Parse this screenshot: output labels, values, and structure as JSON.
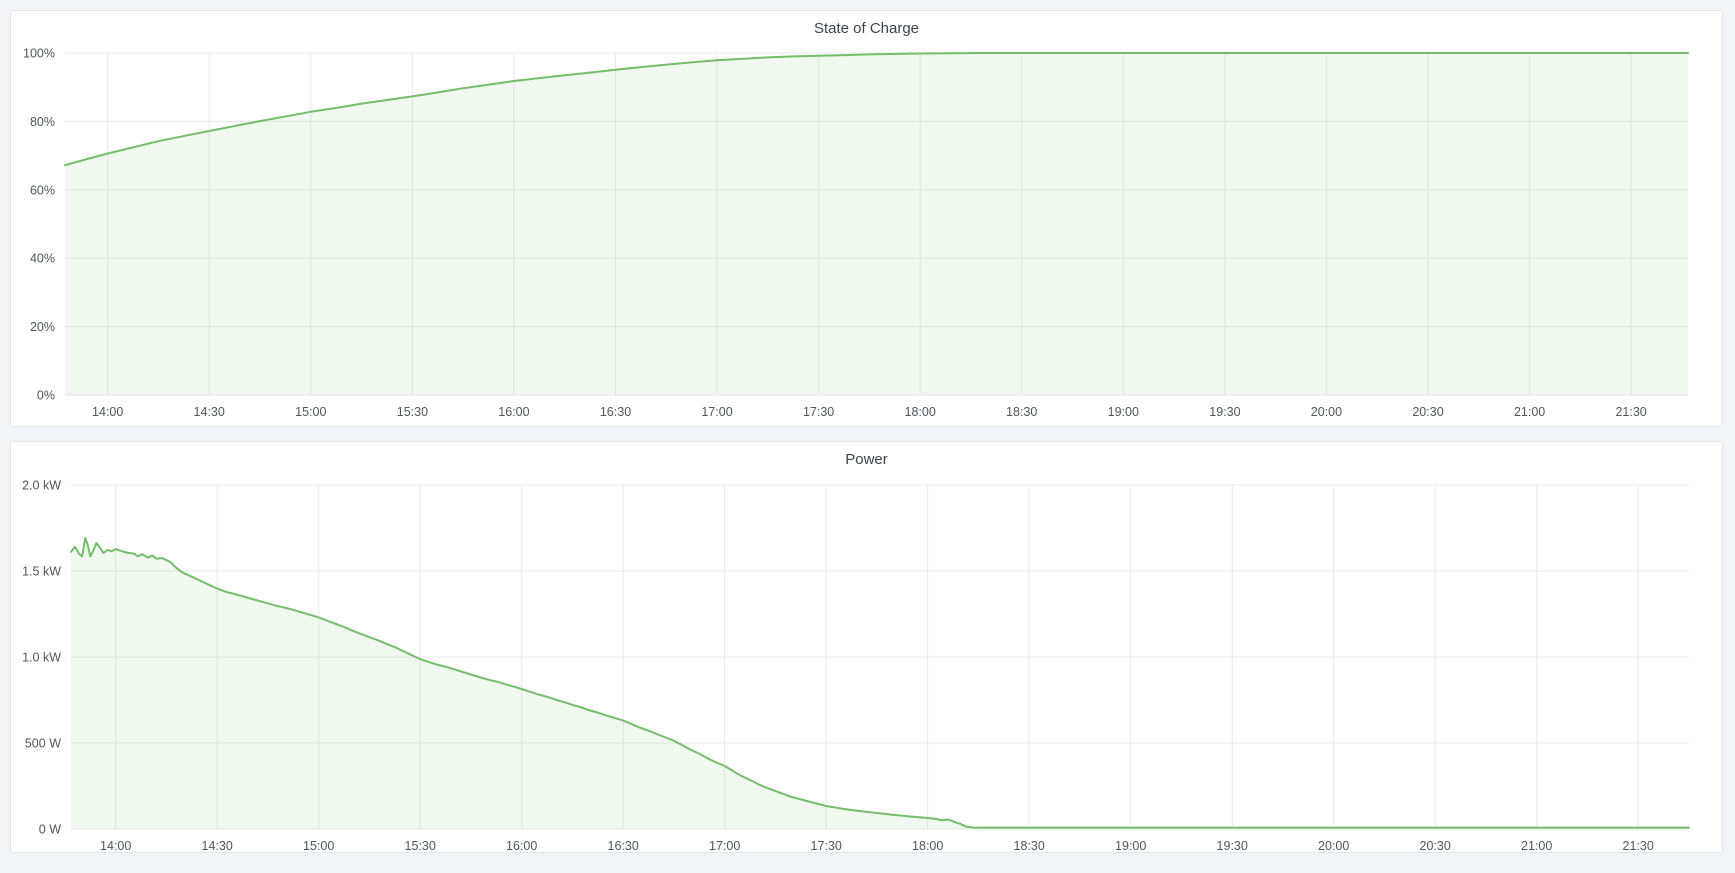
{
  "page": {
    "background_color": "#f2f4f8",
    "panel_background": "#ffffff",
    "accent_green": "#73bf69"
  },
  "chart_data": [
    {
      "type": "area",
      "title": "State of Charge",
      "xlabel": "",
      "ylabel": "",
      "y_range": [
        0,
        100
      ],
      "x_range_hours": [
        13.79,
        21.78
      ],
      "grid": true,
      "legend": "none",
      "x_ticks": [
        {
          "v": 14.0,
          "label": "14:00"
        },
        {
          "v": 14.5,
          "label": "14:30"
        },
        {
          "v": 15.0,
          "label": "15:00"
        },
        {
          "v": 15.5,
          "label": "15:30"
        },
        {
          "v": 16.0,
          "label": "16:00"
        },
        {
          "v": 16.5,
          "label": "16:30"
        },
        {
          "v": 17.0,
          "label": "17:00"
        },
        {
          "v": 17.5,
          "label": "17:30"
        },
        {
          "v": 18.0,
          "label": "18:00"
        },
        {
          "v": 18.5,
          "label": "18:30"
        },
        {
          "v": 19.0,
          "label": "19:00"
        },
        {
          "v": 19.5,
          "label": "19:30"
        },
        {
          "v": 20.0,
          "label": "20:00"
        },
        {
          "v": 20.5,
          "label": "20:30"
        },
        {
          "v": 21.0,
          "label": "21:00"
        },
        {
          "v": 21.5,
          "label": "21:30"
        }
      ],
      "y_ticks": [
        {
          "v": 0,
          "label": "0%"
        },
        {
          "v": 20,
          "label": "20%"
        },
        {
          "v": 40,
          "label": "40%"
        },
        {
          "v": 60,
          "label": "60%"
        },
        {
          "v": 80,
          "label": "80%"
        },
        {
          "v": 100,
          "label": "100%"
        }
      ],
      "series": [
        {
          "name": "State of Charge",
          "unit": "percent",
          "color": "#73bf69",
          "fill": "rgba(115,191,105,0.11)",
          "points": [
            [
              13.79,
              67.2
            ],
            [
              13.9,
              69.0
            ],
            [
              14.0,
              70.6
            ],
            [
              14.13,
              72.5
            ],
            [
              14.25,
              74.2
            ],
            [
              14.38,
              75.8
            ],
            [
              14.5,
              77.2
            ],
            [
              14.63,
              78.7
            ],
            [
              14.75,
              80.1
            ],
            [
              14.88,
              81.5
            ],
            [
              15.0,
              82.8
            ],
            [
              15.13,
              84.0
            ],
            [
              15.25,
              85.2
            ],
            [
              15.38,
              86.3
            ],
            [
              15.5,
              87.3
            ],
            [
              15.63,
              88.5
            ],
            [
              15.75,
              89.7
            ],
            [
              15.88,
              90.8
            ],
            [
              16.0,
              91.8
            ],
            [
              16.13,
              92.7
            ],
            [
              16.25,
              93.5
            ],
            [
              16.38,
              94.3
            ],
            [
              16.5,
              95.1
            ],
            [
              16.63,
              95.9
            ],
            [
              16.75,
              96.6
            ],
            [
              16.88,
              97.3
            ],
            [
              17.0,
              97.9
            ],
            [
              17.13,
              98.3
            ],
            [
              17.25,
              98.7
            ],
            [
              17.38,
              99.0
            ],
            [
              17.5,
              99.2
            ],
            [
              17.63,
              99.4
            ],
            [
              17.75,
              99.6
            ],
            [
              17.88,
              99.75
            ],
            [
              18.0,
              99.85
            ],
            [
              18.15,
              99.95
            ],
            [
              18.3,
              100
            ],
            [
              18.6,
              100
            ],
            [
              19.0,
              100
            ],
            [
              19.5,
              100
            ],
            [
              20.0,
              100
            ],
            [
              20.5,
              100
            ],
            [
              21.0,
              100
            ],
            [
              21.4,
              100
            ],
            [
              21.78,
              100
            ]
          ]
        }
      ]
    },
    {
      "type": "area",
      "title": "Power",
      "xlabel": "",
      "ylabel": "",
      "y_range": [
        0,
        2000
      ],
      "x_range_hours": [
        13.78,
        21.75
      ],
      "grid": true,
      "legend": "none",
      "x_ticks": [
        {
          "v": 14.0,
          "label": "14:00"
        },
        {
          "v": 14.5,
          "label": "14:30"
        },
        {
          "v": 15.0,
          "label": "15:00"
        },
        {
          "v": 15.5,
          "label": "15:30"
        },
        {
          "v": 16.0,
          "label": "16:00"
        },
        {
          "v": 16.5,
          "label": "16:30"
        },
        {
          "v": 17.0,
          "label": "17:00"
        },
        {
          "v": 17.5,
          "label": "17:30"
        },
        {
          "v": 18.0,
          "label": "18:00"
        },
        {
          "v": 18.5,
          "label": "18:30"
        },
        {
          "v": 19.0,
          "label": "19:00"
        },
        {
          "v": 19.5,
          "label": "19:30"
        },
        {
          "v": 20.0,
          "label": "20:00"
        },
        {
          "v": 20.5,
          "label": "20:30"
        },
        {
          "v": 21.0,
          "label": "21:00"
        },
        {
          "v": 21.5,
          "label": "21:30"
        }
      ],
      "y_ticks": [
        {
          "v": 0,
          "label": "0 W"
        },
        {
          "v": 500,
          "label": "500 W"
        },
        {
          "v": 1000,
          "label": "1.0 kW"
        },
        {
          "v": 1500,
          "label": "1.5 kW"
        },
        {
          "v": 2000,
          "label": "2.0 kW"
        }
      ],
      "series": [
        {
          "name": "Power",
          "unit": "watt",
          "color": "#73bf69",
          "fill": "rgba(115,191,105,0.11)",
          "points": [
            [
              13.78,
              1612
            ],
            [
              13.8,
              1640
            ],
            [
              13.82,
              1600
            ],
            [
              13.835,
              1585
            ],
            [
              13.85,
              1692
            ],
            [
              13.862,
              1655
            ],
            [
              13.875,
              1585
            ],
            [
              13.89,
              1620
            ],
            [
              13.905,
              1662
            ],
            [
              13.92,
              1640
            ],
            [
              13.94,
              1605
            ],
            [
              13.96,
              1622
            ],
            [
              13.98,
              1615
            ],
            [
              14.0,
              1628
            ],
            [
              14.03,
              1615
            ],
            [
              14.06,
              1605
            ],
            [
              14.09,
              1601
            ],
            [
              14.11,
              1585
            ],
            [
              14.13,
              1598
            ],
            [
              14.16,
              1578
            ],
            [
              14.18,
              1590
            ],
            [
              14.2,
              1572
            ],
            [
              14.23,
              1575
            ],
            [
              14.27,
              1552
            ],
            [
              14.3,
              1517
            ],
            [
              14.33,
              1490
            ],
            [
              14.37,
              1470
            ],
            [
              14.42,
              1442
            ],
            [
              14.46,
              1420
            ],
            [
              14.5,
              1398
            ],
            [
              14.54,
              1380
            ],
            [
              14.58,
              1368
            ],
            [
              14.63,
              1352
            ],
            [
              14.67,
              1338
            ],
            [
              14.71,
              1325
            ],
            [
              14.75,
              1312
            ],
            [
              14.79,
              1298
            ],
            [
              14.83,
              1288
            ],
            [
              14.88,
              1272
            ],
            [
              14.92,
              1258
            ],
            [
              14.96,
              1244
            ],
            [
              15.0,
              1230
            ],
            [
              15.04,
              1212
            ],
            [
              15.08,
              1194
            ],
            [
              15.13,
              1172
            ],
            [
              15.17,
              1152
            ],
            [
              15.21,
              1133
            ],
            [
              15.25,
              1115
            ],
            [
              15.29,
              1098
            ],
            [
              15.33,
              1078
            ],
            [
              15.38,
              1055
            ],
            [
              15.42,
              1032
            ],
            [
              15.46,
              1010
            ],
            [
              15.5,
              988
            ],
            [
              15.54,
              972
            ],
            [
              15.58,
              957
            ],
            [
              15.63,
              942
            ],
            [
              15.67,
              928
            ],
            [
              15.71,
              913
            ],
            [
              15.75,
              898
            ],
            [
              15.79,
              884
            ],
            [
              15.83,
              870
            ],
            [
              15.88,
              856
            ],
            [
              15.92,
              842
            ],
            [
              15.96,
              828
            ],
            [
              16.0,
              814
            ],
            [
              16.04,
              798
            ],
            [
              16.08,
              783
            ],
            [
              16.13,
              767
            ],
            [
              16.17,
              751
            ],
            [
              16.21,
              737
            ],
            [
              16.25,
              722
            ],
            [
              16.29,
              708
            ],
            [
              16.33,
              691
            ],
            [
              16.38,
              675
            ],
            [
              16.42,
              659
            ],
            [
              16.46,
              645
            ],
            [
              16.5,
              630
            ],
            [
              16.54,
              611
            ],
            [
              16.58,
              590
            ],
            [
              16.63,
              570
            ],
            [
              16.67,
              550
            ],
            [
              16.71,
              532
            ],
            [
              16.75,
              513
            ],
            [
              16.79,
              488
            ],
            [
              16.83,
              462
            ],
            [
              16.88,
              435
            ],
            [
              16.92,
              408
            ],
            [
              16.96,
              386
            ],
            [
              17.0,
              366
            ],
            [
              17.04,
              338
            ],
            [
              17.08,
              310
            ],
            [
              17.13,
              282
            ],
            [
              17.17,
              258
            ],
            [
              17.21,
              238
            ],
            [
              17.25,
              221
            ],
            [
              17.29,
              203
            ],
            [
              17.33,
              186
            ],
            [
              17.38,
              171
            ],
            [
              17.42,
              158
            ],
            [
              17.46,
              146
            ],
            [
              17.5,
              134
            ],
            [
              17.54,
              126
            ],
            [
              17.58,
              118
            ],
            [
              17.63,
              110
            ],
            [
              17.67,
              104
            ],
            [
              17.71,
              98
            ],
            [
              17.75,
              93
            ],
            [
              17.79,
              88
            ],
            [
              17.83,
              82
            ],
            [
              17.88,
              77
            ],
            [
              17.92,
              72
            ],
            [
              17.96,
              68
            ],
            [
              18.0,
              64
            ],
            [
              18.04,
              59
            ],
            [
              18.07,
              50
            ],
            [
              18.1,
              56
            ],
            [
              18.13,
              42
            ],
            [
              18.16,
              30
            ],
            [
              18.19,
              14
            ],
            [
              18.22,
              9
            ],
            [
              18.3,
              8
            ],
            [
              18.5,
              8
            ],
            [
              18.8,
              8
            ],
            [
              19.2,
              8
            ],
            [
              19.6,
              8
            ],
            [
              20.0,
              8
            ],
            [
              20.4,
              8
            ],
            [
              20.8,
              8
            ],
            [
              21.2,
              8
            ],
            [
              21.5,
              8
            ],
            [
              21.75,
              8
            ]
          ]
        }
      ]
    }
  ]
}
